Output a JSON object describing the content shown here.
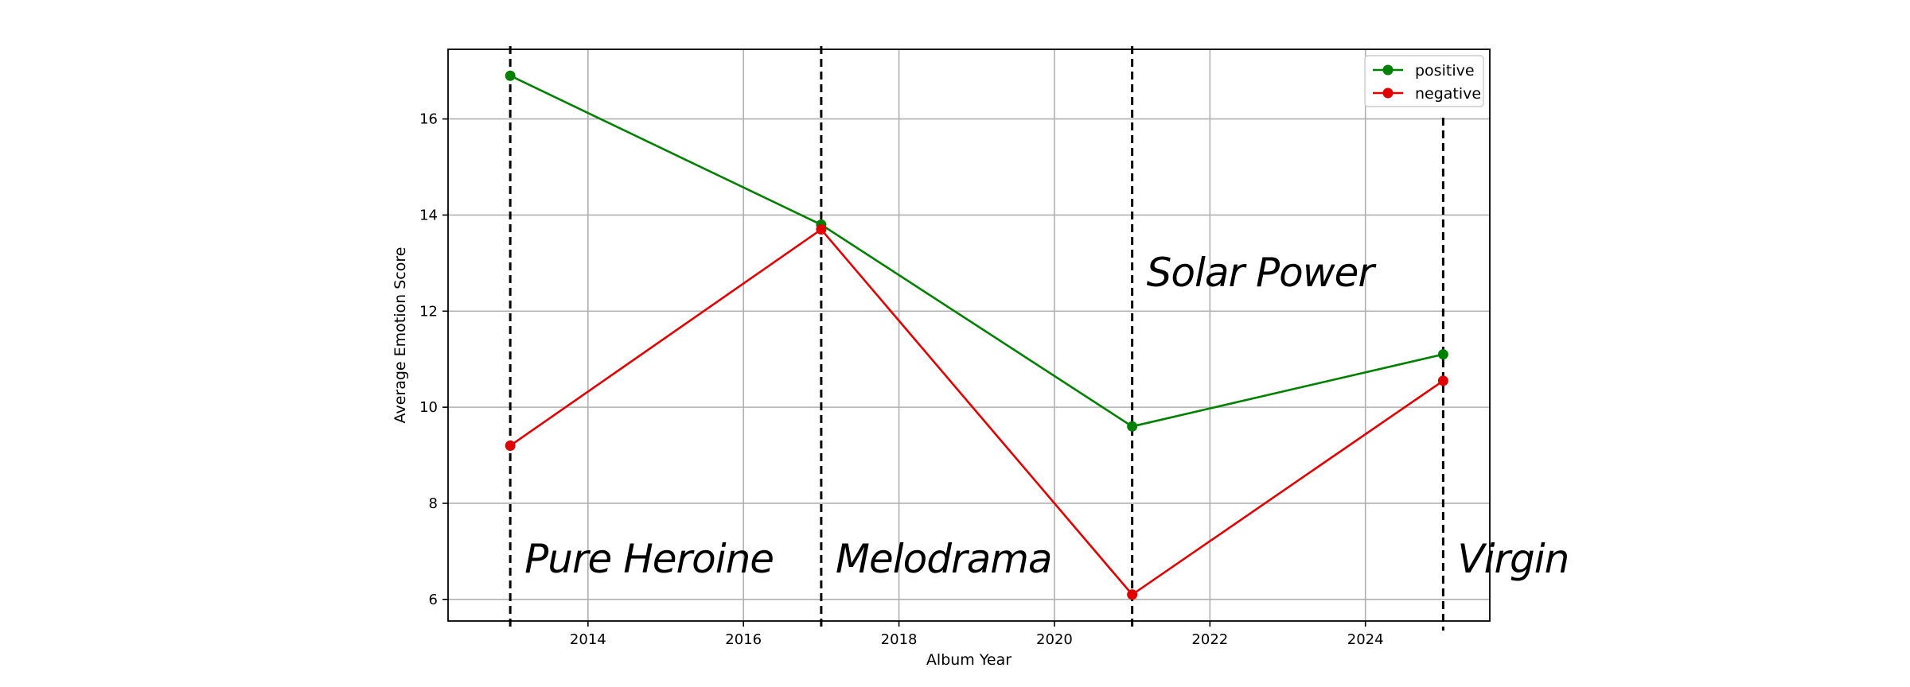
{
  "chart_data": {
    "type": "line",
    "xlabel": "Album Year",
    "ylabel": "Average Emotion Score",
    "xlim": [
      2012.2,
      2025.6
    ],
    "ylim": [
      5.55,
      17.45
    ],
    "xticks": [
      2014,
      2016,
      2018,
      2020,
      2022,
      2024
    ],
    "yticks": [
      6,
      8,
      10,
      12,
      14,
      16
    ],
    "grid": true,
    "legend_position": "top-right",
    "x": [
      2013,
      2017,
      2021,
      2025
    ],
    "series": [
      {
        "name": "positive",
        "color": "#008000",
        "values": [
          16.9,
          13.8,
          9.6,
          11.1
        ]
      },
      {
        "name": "negative",
        "color": "#e00000",
        "values": [
          9.2,
          13.7,
          6.1,
          10.55
        ]
      }
    ],
    "album_markers": [
      {
        "x": 2013,
        "label": "Pure Heroine"
      },
      {
        "x": 2017,
        "label": "Melodrama"
      },
      {
        "x": 2021,
        "label": "Solar Power"
      },
      {
        "x": 2025,
        "label": "Virgin"
      }
    ]
  }
}
